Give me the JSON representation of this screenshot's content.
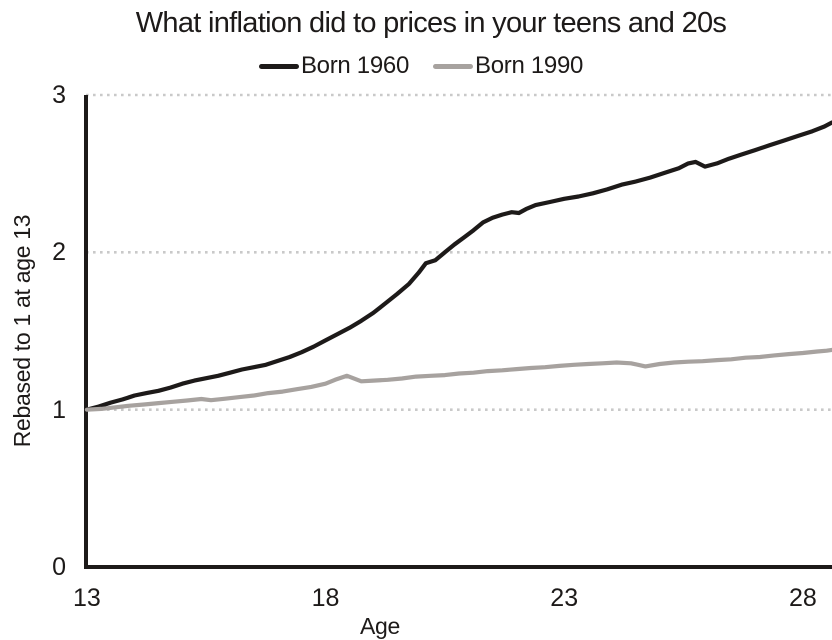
{
  "chart_data": {
    "type": "line",
    "title": "What inflation did to prices in your teens and 20s",
    "xlabel": "Age",
    "ylabel": "Rebased to 1 at age 13",
    "x_ticks": [
      13,
      18,
      23,
      28
    ],
    "y_ticks": [
      0,
      1,
      2,
      3
    ],
    "y_gridlines": [
      1,
      2,
      3
    ],
    "xlim": [
      12.94,
      28.61
    ],
    "ylim": [
      0,
      3
    ],
    "grid_style": "dotted horizontal",
    "grid_color": "#c9c9c9",
    "axis_color": "#1d1a19",
    "legend_position": "top",
    "series": [
      {
        "name": "Born 1960",
        "color": "#1d1a19",
        "points": [
          [
            13,
            1.0
          ],
          [
            13.25,
            1.02
          ],
          [
            13.5,
            1.045
          ],
          [
            13.75,
            1.065
          ],
          [
            14,
            1.09
          ],
          [
            14.25,
            1.105
          ],
          [
            14.5,
            1.12
          ],
          [
            14.75,
            1.14
          ],
          [
            15,
            1.165
          ],
          [
            15.25,
            1.185
          ],
          [
            15.5,
            1.2
          ],
          [
            15.75,
            1.215
          ],
          [
            16,
            1.235
          ],
          [
            16.25,
            1.255
          ],
          [
            16.5,
            1.27
          ],
          [
            16.75,
            1.285
          ],
          [
            17,
            1.31
          ],
          [
            17.25,
            1.335
          ],
          [
            17.5,
            1.365
          ],
          [
            17.75,
            1.4
          ],
          [
            18,
            1.44
          ],
          [
            18.25,
            1.48
          ],
          [
            18.5,
            1.52
          ],
          [
            18.75,
            1.565
          ],
          [
            19,
            1.615
          ],
          [
            19.25,
            1.675
          ],
          [
            19.5,
            1.735
          ],
          [
            19.75,
            1.8
          ],
          [
            19.95,
            1.87
          ],
          [
            20.1,
            1.93
          ],
          [
            20.3,
            1.95
          ],
          [
            20.5,
            2.0
          ],
          [
            20.7,
            2.05
          ],
          [
            20.9,
            2.095
          ],
          [
            21.1,
            2.14
          ],
          [
            21.3,
            2.19
          ],
          [
            21.5,
            2.22
          ],
          [
            21.7,
            2.24
          ],
          [
            21.9,
            2.255
          ],
          [
            22.05,
            2.25
          ],
          [
            22.2,
            2.275
          ],
          [
            22.4,
            2.3
          ],
          [
            22.7,
            2.32
          ],
          [
            23,
            2.34
          ],
          [
            23.3,
            2.355
          ],
          [
            23.6,
            2.375
          ],
          [
            23.9,
            2.4
          ],
          [
            24.2,
            2.43
          ],
          [
            24.5,
            2.45
          ],
          [
            24.8,
            2.475
          ],
          [
            25.1,
            2.505
          ],
          [
            25.4,
            2.535
          ],
          [
            25.6,
            2.565
          ],
          [
            25.75,
            2.575
          ],
          [
            25.95,
            2.545
          ],
          [
            26.2,
            2.565
          ],
          [
            26.45,
            2.595
          ],
          [
            26.7,
            2.62
          ],
          [
            27,
            2.65
          ],
          [
            27.3,
            2.68
          ],
          [
            27.6,
            2.71
          ],
          [
            27.9,
            2.74
          ],
          [
            28.2,
            2.77
          ],
          [
            28.45,
            2.8
          ],
          [
            28.61,
            2.825
          ]
        ]
      },
      {
        "name": "Born 1990",
        "color": "#a7a29f",
        "points": [
          [
            13,
            1.0
          ],
          [
            13.3,
            1.005
          ],
          [
            13.6,
            1.015
          ],
          [
            13.9,
            1.025
          ],
          [
            14.2,
            1.033
          ],
          [
            14.5,
            1.042
          ],
          [
            14.8,
            1.05
          ],
          [
            15.1,
            1.058
          ],
          [
            15.4,
            1.068
          ],
          [
            15.6,
            1.06
          ],
          [
            15.9,
            1.07
          ],
          [
            16.2,
            1.08
          ],
          [
            16.5,
            1.09
          ],
          [
            16.8,
            1.105
          ],
          [
            17.1,
            1.115
          ],
          [
            17.4,
            1.13
          ],
          [
            17.7,
            1.145
          ],
          [
            18,
            1.165
          ],
          [
            18.2,
            1.19
          ],
          [
            18.45,
            1.215
          ],
          [
            18.75,
            1.18
          ],
          [
            19,
            1.185
          ],
          [
            19.3,
            1.19
          ],
          [
            19.6,
            1.198
          ],
          [
            19.9,
            1.21
          ],
          [
            20.2,
            1.215
          ],
          [
            20.5,
            1.22
          ],
          [
            20.8,
            1.23
          ],
          [
            21.1,
            1.235
          ],
          [
            21.4,
            1.245
          ],
          [
            21.7,
            1.25
          ],
          [
            22,
            1.258
          ],
          [
            22.3,
            1.265
          ],
          [
            22.6,
            1.27
          ],
          [
            22.9,
            1.278
          ],
          [
            23.2,
            1.285
          ],
          [
            23.5,
            1.29
          ],
          [
            23.8,
            1.295
          ],
          [
            24.1,
            1.3
          ],
          [
            24.4,
            1.295
          ],
          [
            24.7,
            1.275
          ],
          [
            25,
            1.29
          ],
          [
            25.3,
            1.3
          ],
          [
            25.6,
            1.305
          ],
          [
            25.9,
            1.308
          ],
          [
            26.2,
            1.315
          ],
          [
            26.5,
            1.32
          ],
          [
            26.8,
            1.33
          ],
          [
            27.1,
            1.335
          ],
          [
            27.4,
            1.345
          ],
          [
            27.7,
            1.353
          ],
          [
            28,
            1.36
          ],
          [
            28.3,
            1.37
          ],
          [
            28.5,
            1.375
          ],
          [
            28.61,
            1.38
          ]
        ]
      }
    ]
  }
}
